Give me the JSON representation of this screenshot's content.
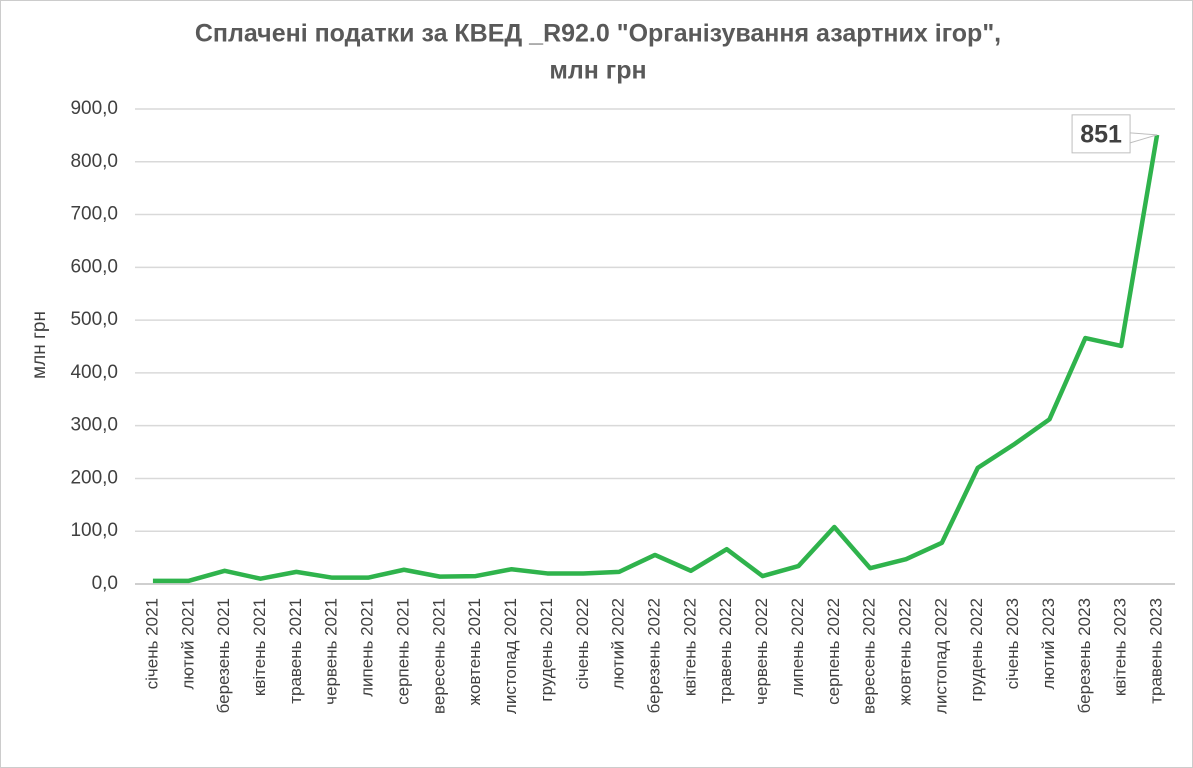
{
  "chart_data": {
    "type": "line",
    "title": [
      "Сплачені податки за КВЕД _R92.0 \"Організування азартних ігор\",",
      "млн грн"
    ],
    "y_label": "млн грн",
    "categories": [
      "січень 2021",
      "лютий 2021",
      "березень 2021",
      "квітень 2021",
      "травень 2021",
      "червень 2021",
      "липень 2021",
      "серпень 2021",
      "вересень 2021",
      "жовтень 2021",
      "листопад 2021",
      "грудень 2021",
      "січень 2022",
      "лютий 2022",
      "березень 2022",
      "квітень 2022",
      "травень 2022",
      "червень 2022",
      "липень 2022",
      "серпень 2022",
      "вересень 2022",
      "жовтень 2022",
      "листопад 2022",
      "грудень 2022",
      "січень 2023",
      "лютий 2023",
      "березень 2023",
      "квітень 2023",
      "травень 2023"
    ],
    "series": [
      {
        "name": "млн грн",
        "color": "#2fb34c",
        "values": [
          6,
          6,
          25,
          10,
          23,
          12,
          12,
          27,
          14,
          15,
          28,
          20,
          20,
          23,
          55,
          25,
          66,
          15,
          34,
          108,
          30,
          47,
          78,
          220,
          264,
          312,
          466,
          451,
          851
        ]
      }
    ],
    "ylim": [
      0,
      900
    ],
    "yticks": [
      {
        "value": 0,
        "label": "0,0"
      },
      {
        "value": 100,
        "label": "100,0"
      },
      {
        "value": 200,
        "label": "200,0"
      },
      {
        "value": 300,
        "label": "300,0"
      },
      {
        "value": 400,
        "label": "400,0"
      },
      {
        "value": 500,
        "label": "500,0"
      },
      {
        "value": 600,
        "label": "600,0"
      },
      {
        "value": 700,
        "label": "700,0"
      },
      {
        "value": 800,
        "label": "800,0"
      },
      {
        "value": 900,
        "label": "900,0"
      }
    ],
    "grid": true
  }
}
